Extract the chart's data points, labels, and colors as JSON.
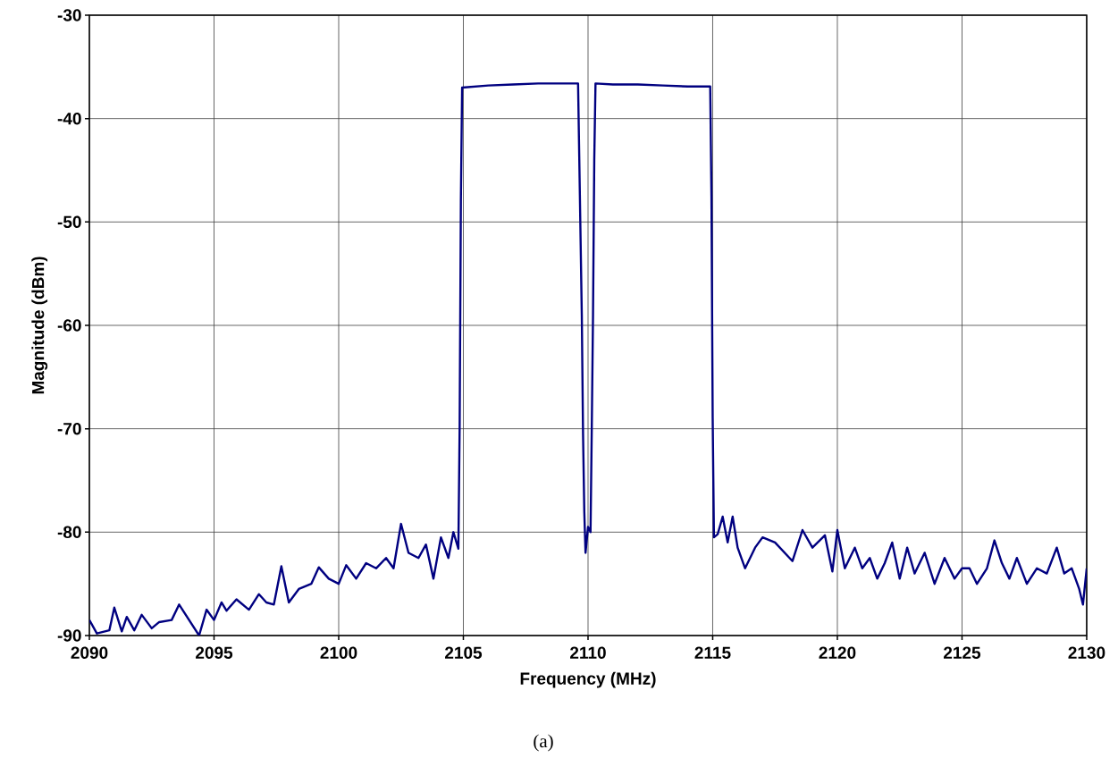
{
  "chart_data": {
    "type": "line",
    "xlabel": "Frequency (MHz)",
    "ylabel": "Magnitude (dBm)",
    "annotations": [
      "(a)"
    ],
    "xlim": [
      2090,
      2130
    ],
    "xticks": [
      2090,
      2095,
      2100,
      2105,
      2110,
      2115,
      2120,
      2125,
      2130
    ],
    "ylim": [
      -90,
      -30
    ],
    "yticks": [
      -90,
      -80,
      -70,
      -60,
      -50,
      -40,
      -30
    ],
    "grid": true,
    "marker": "none",
    "line_style": "solid",
    "series": [
      {
        "color": "#000080",
        "x": [
          2090,
          2090.3,
          2090.8,
          2091.0,
          2091.3,
          2091.5,
          2091.8,
          2092.1,
          2092.5,
          2092.8,
          2093.3,
          2093.6,
          2094.0,
          2094.4,
          2094.7,
          2095.0,
          2095.3,
          2095.5,
          2095.9,
          2096.4,
          2096.8,
          2097.1,
          2097.4,
          2097.7,
          2098.0,
          2098.4,
          2098.9,
          2099.2,
          2099.6,
          2100.0,
          2100.3,
          2100.7,
          2101.1,
          2101.5,
          2101.9,
          2102.2,
          2102.5,
          2102.8,
          2103.2,
          2103.5,
          2103.8,
          2104.1,
          2104.4,
          2104.6,
          2104.8,
          2104.85,
          2104.9,
          2104.95,
          2106,
          2107,
          2108,
          2109,
          2109.6,
          2109.65,
          2109.75,
          2109.8,
          2109.85,
          2109.9,
          2110.0,
          2110.1,
          2110.15,
          2110.2,
          2110.25,
          2110.3,
          2111,
          2112,
          2113,
          2114,
          2114.9,
          2114.95,
          2115.0,
          2115.05,
          2115.2,
          2115.4,
          2115.6,
          2115.8,
          2116.0,
          2116.3,
          2116.7,
          2117.0,
          2117.5,
          2118.2,
          2118.6,
          2119.0,
          2119.5,
          2119.8,
          2120.0,
          2120.3,
          2120.7,
          2121.0,
          2121.3,
          2121.6,
          2121.9,
          2122.2,
          2122.5,
          2122.8,
          2123.1,
          2123.5,
          2123.9,
          2124.3,
          2124.7,
          2125.0,
          2125.3,
          2125.6,
          2126.0,
          2126.3,
          2126.6,
          2126.9,
          2127.2,
          2127.6,
          2128.0,
          2128.4,
          2128.8,
          2129.1,
          2129.4,
          2129.7,
          2129.85,
          2130
        ],
        "values": [
          -88.5,
          -89.8,
          -89.5,
          -87.3,
          -89.6,
          -88.2,
          -89.5,
          -88.0,
          -89.3,
          -88.7,
          -88.5,
          -87.0,
          -88.5,
          -90.0,
          -87.5,
          -88.5,
          -86.8,
          -87.6,
          -86.5,
          -87.5,
          -86.0,
          -86.8,
          -87.0,
          -83.3,
          -86.8,
          -85.5,
          -85.0,
          -83.4,
          -84.5,
          -85.0,
          -83.2,
          -84.5,
          -83.0,
          -83.5,
          -82.5,
          -83.5,
          -79.2,
          -82.0,
          -82.5,
          -81.2,
          -84.5,
          -80.5,
          -82.5,
          -80.0,
          -81.6,
          -70,
          -48,
          -37,
          -36.8,
          -36.7,
          -36.6,
          -36.6,
          -36.6,
          -44,
          -59,
          -70.5,
          -78,
          -82,
          -79.5,
          -80,
          -70,
          -59,
          -44,
          -36.6,
          -36.7,
          -36.7,
          -36.8,
          -36.9,
          -36.9,
          -47.5,
          -69,
          -80.5,
          -80.2,
          -78.5,
          -81,
          -78.5,
          -81.5,
          -83.5,
          -81.5,
          -80.5,
          -81.0,
          -82.8,
          -79.8,
          -81.5,
          -80.3,
          -83.8,
          -79.8,
          -83.5,
          -81.5,
          -83.5,
          -82.5,
          -84.5,
          -83.0,
          -81.0,
          -84.5,
          -81.5,
          -84.0,
          -82.0,
          -85.0,
          -82.5,
          -84.5,
          -83.5,
          -83.5,
          -85.0,
          -83.5,
          -80.8,
          -83.0,
          -84.5,
          -82.5,
          -85.0,
          -83.5,
          -84.0,
          -81.5,
          -84.0,
          -83.5,
          -85.5,
          -87.0,
          -83.5
        ]
      }
    ]
  }
}
